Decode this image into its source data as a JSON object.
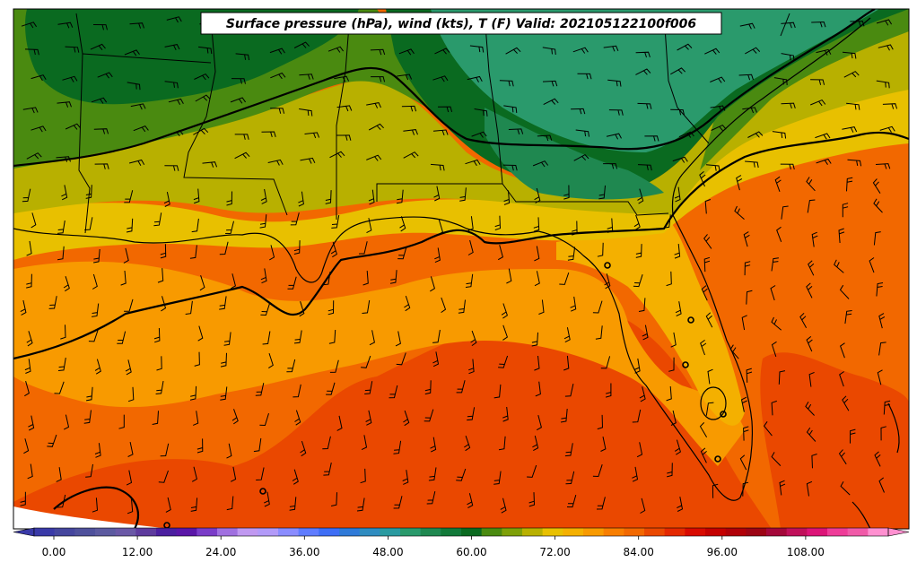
{
  "title": "Surface pressure (hPa), wind (kts), T (F) Valid: 202105122100f006",
  "colorbar": {
    "ticks": [
      "0.00",
      "12.00",
      "24.00",
      "36.00",
      "48.00",
      "60.00",
      "72.00",
      "84.00",
      "96.00",
      "108.00"
    ],
    "colors": [
      "#3a3aa8",
      "#45469e",
      "#4f519c",
      "#5c5aa0",
      "#6a58a6",
      "#5e3b9e",
      "#4b1fa0",
      "#5a16a8",
      "#7a3cc8",
      "#a070e0",
      "#c098f0",
      "#b29af8",
      "#8a8cff",
      "#5f7cff",
      "#3e6ef5",
      "#2f7ad8",
      "#2f8cc0",
      "#2a9aa0",
      "#2a9a6c",
      "#1f8850",
      "#127a3a",
      "#0a6a20",
      "#4a8a10",
      "#7ea008",
      "#b8b000",
      "#e8c000",
      "#f4b000",
      "#f89a00",
      "#f87e00",
      "#f26800",
      "#ea4800",
      "#e42800",
      "#d80a00",
      "#c40000",
      "#b00008",
      "#9c0414",
      "#a4083a",
      "#c0105a",
      "#dc1478",
      "#ee3c98",
      "#f05aa8",
      "#ff90d0"
    ]
  },
  "colors": {
    "pressure_contour": "#000000",
    "state_border": "#000000",
    "barb": "#000000",
    "zones": [
      "#4a8a10",
      "#0a6a20",
      "#2a9a6c",
      "#b8b000",
      "#e8c000",
      "#f4b000",
      "#f89a00",
      "#f26800",
      "#ea4800"
    ]
  }
}
